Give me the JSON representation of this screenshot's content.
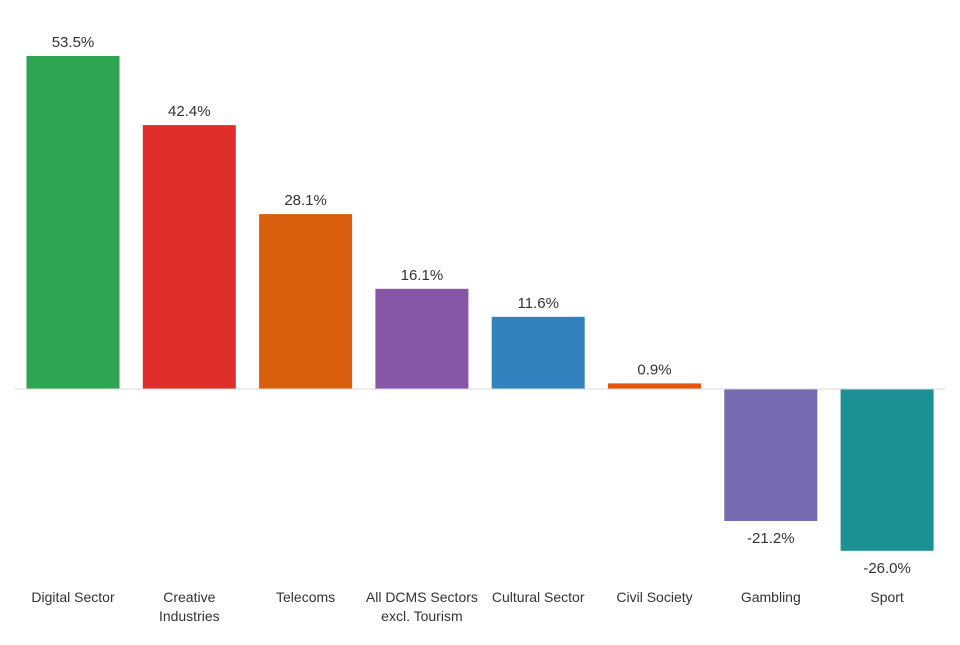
{
  "chart_data": {
    "type": "bar",
    "title": "",
    "xlabel": "",
    "ylabel": "",
    "ylim": [
      -26.0,
      53.5
    ],
    "grid": false,
    "legend": "none",
    "value_suffix": "%",
    "categories": [
      [
        "Digital Sector"
      ],
      [
        "Creative",
        "Industries"
      ],
      [
        "Telecoms"
      ],
      [
        "All DCMS Sectors",
        "excl. Tourism"
      ],
      [
        "Cultural Sector"
      ],
      [
        "Civil Society"
      ],
      [
        "Gambling"
      ],
      [
        "Sport"
      ]
    ],
    "values": [
      53.5,
      42.4,
      28.1,
      16.1,
      11.6,
      0.9,
      -21.2,
      -26.0
    ],
    "value_labels": [
      "53.5%",
      "42.4%",
      "28.1%",
      "16.1%",
      "11.6%",
      "0.9%",
      "-21.2%",
      "-26.0%"
    ],
    "colors": [
      "#2ea553",
      "#e02e2a",
      "#d95f0e",
      "#8856a7",
      "#3182bd",
      "#e6550d",
      "#756bb1",
      "#1b9196"
    ]
  }
}
